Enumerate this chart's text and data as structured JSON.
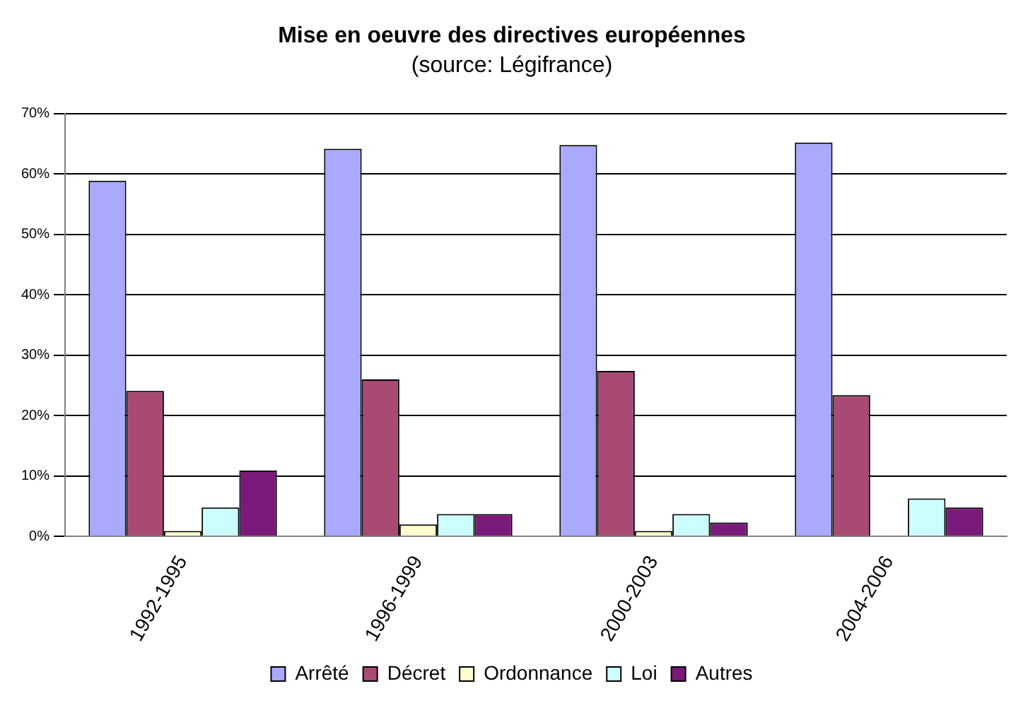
{
  "chart_data": {
    "type": "bar",
    "title": "Mise en oeuvre des directives européennes",
    "subtitle": "(source: Légifrance)",
    "categories": [
      "1992-1995",
      "1996-1999",
      "2000-2003",
      "2004-2006"
    ],
    "series": [
      {
        "name": "Arrêté",
        "color": "#a9a9fe",
        "values": [
          58.9,
          64.2,
          64.8,
          65.2
        ]
      },
      {
        "name": "Décret",
        "color": "#a94a74",
        "values": [
          24.1,
          26.0,
          27.4,
          23.4
        ]
      },
      {
        "name": "Ordonnance",
        "color": "#fefecc",
        "values": [
          0.9,
          2.0,
          0.9,
          0
        ]
      },
      {
        "name": "Loi",
        "color": "#ccfefe",
        "values": [
          4.8,
          3.7,
          3.7,
          6.3
        ]
      },
      {
        "name": "Autres",
        "color": "#7a1a7a",
        "values": [
          10.9,
          3.7,
          2.3,
          4.8
        ]
      }
    ],
    "ylim": [
      0,
      70
    ],
    "yticks": [
      {
        "value": 0,
        "label": "0%"
      },
      {
        "value": 10,
        "label": "10%"
      },
      {
        "value": 20,
        "label": "20%"
      },
      {
        "value": 30,
        "label": "30%"
      },
      {
        "value": 40,
        "label": "40%"
      },
      {
        "value": 50,
        "label": "50%"
      },
      {
        "value": 60,
        "label": "60%"
      },
      {
        "value": 70,
        "label": "70%"
      }
    ],
    "grid": "y",
    "legend": "bottom"
  }
}
